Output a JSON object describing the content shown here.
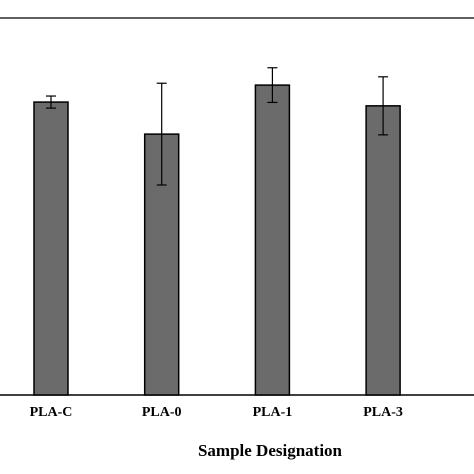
{
  "chart_data": {
    "type": "bar",
    "x_label": "Sample Designation",
    "categories": [
      "PLA-C",
      "PLA-0",
      "PLA-1",
      "PLA-3"
    ],
    "values": [
      77.7,
      69.2,
      82.2,
      76.7
    ],
    "errors": [
      1.6,
      13.5,
      4.6,
      7.7
    ],
    "color": "#6b6b6b",
    "ylim": [
      0,
      100
    ]
  }
}
